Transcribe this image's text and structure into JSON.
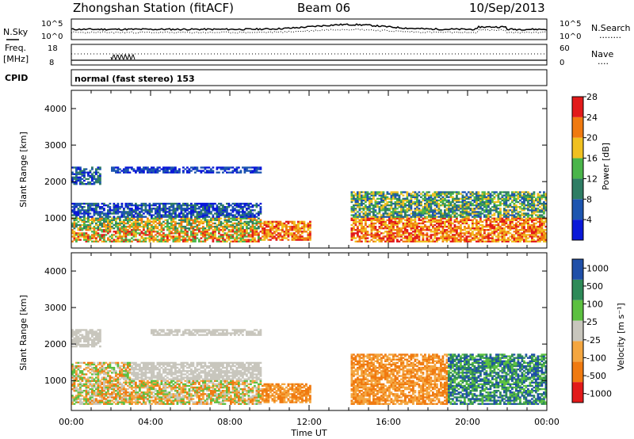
{
  "header": {
    "station": "Zhongshan Station (fitACF)",
    "beam": "Beam 06",
    "date": "10/Sep/2013"
  },
  "noise_panel": {
    "left_label": "N.Sky",
    "right_label": "N.Search",
    "right_legend": "........",
    "left_ticks": [
      "10^5",
      "10^0"
    ],
    "right_ticks": [
      "10^5",
      "10^0"
    ]
  },
  "freq_panel": {
    "left_label_line1": "Freq.",
    "left_label_line2": "[MHz]",
    "left_ticks": [
      "18",
      "8"
    ],
    "right_label": "Nave",
    "right_legend": "....",
    "right_ticks": [
      "60",
      "0"
    ]
  },
  "cpid": {
    "label": "CPID",
    "text": "normal (fast stereo) 153"
  },
  "colors": {
    "axis": "#000000",
    "power": [
      "#0a18d8",
      "#1d55b0",
      "#2e7d64",
      "#4ab54a",
      "#f0c020",
      "#f07a10",
      "#e21a1a"
    ],
    "velocity": [
      "#e21a1a",
      "#f07a10",
      "#f4a640",
      "#c8c6bd",
      "#5cc040",
      "#2e8a58",
      "#1f4fa8"
    ]
  },
  "chart_data": [
    {
      "type": "heatmap",
      "name": "power",
      "ylabel": "Slant Range [km]",
      "ylim": [
        180,
        4500
      ],
      "yticks": [
        1000,
        2000,
        3000,
        4000
      ],
      "xlim": [
        0,
        24
      ],
      "xticks": [
        "00:00",
        "04:00",
        "08:00",
        "12:00",
        "16:00",
        "20:00",
        "00:00"
      ],
      "colorbar_label": "Power [dB]",
      "colorbar_ticks": [
        "4",
        "8",
        "12",
        "16",
        "20",
        "24",
        "28"
      ],
      "colorbar_range": [
        0,
        30
      ]
    },
    {
      "type": "heatmap",
      "name": "velocity",
      "ylabel": "Slant Range [km]",
      "ylim": [
        180,
        4500
      ],
      "yticks": [
        1000,
        2000,
        3000,
        4000
      ],
      "xlim": [
        0,
        24
      ],
      "xticks": [
        "00:00",
        "04:00",
        "08:00",
        "12:00",
        "16:00",
        "20:00",
        "00:00"
      ],
      "xlabel": "Time UT",
      "colorbar_label": "Velocity [m s⁻¹]",
      "colorbar_ticks": [
        "1000",
        "500",
        "100",
        "25",
        "-25",
        "-100",
        "-500",
        "-1000"
      ]
    }
  ]
}
